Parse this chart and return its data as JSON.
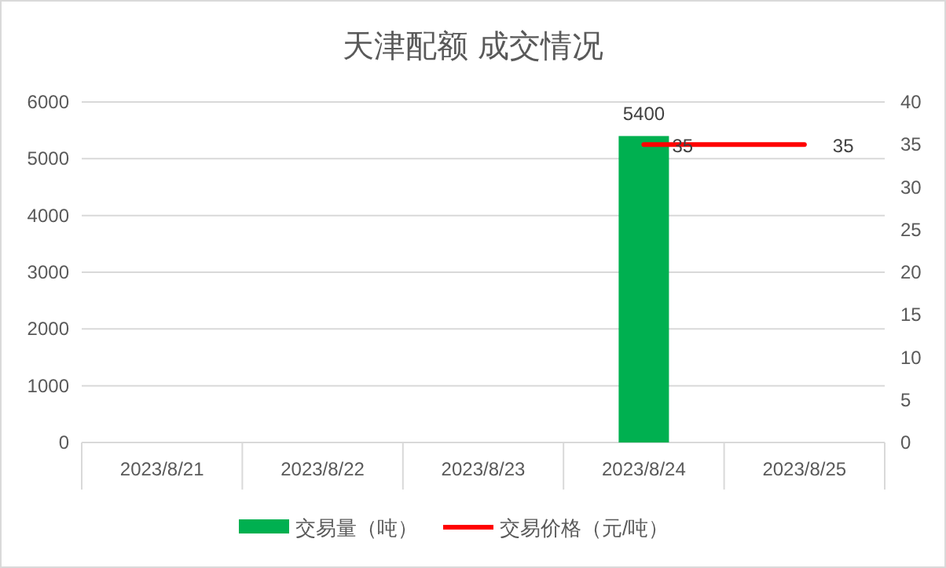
{
  "chart_data": {
    "type": "bar",
    "title": "天津配额 成交情况",
    "categories": [
      "2023/8/21",
      "2023/8/22",
      "2023/8/23",
      "2023/8/24",
      "2023/8/25"
    ],
    "series": [
      {
        "name": "交易量（吨）",
        "color": "#00b050",
        "values": [
          null,
          null,
          null,
          5400,
          null
        ]
      },
      {
        "name": "交易价格（元/吨）",
        "type": "line",
        "axis": "y2",
        "color": "#ff0000",
        "marker": "none",
        "values": [
          null,
          null,
          null,
          35,
          35
        ]
      }
    ],
    "ylim": [
      0,
      6000
    ],
    "yticks": [
      0,
      1000,
      2000,
      3000,
      4000,
      5000,
      6000
    ],
    "y2lim": [
      0,
      40
    ],
    "y2ticks": [
      0,
      5,
      10,
      15,
      20,
      25,
      30,
      35,
      40
    ],
    "grid": "y",
    "legend": "bottom",
    "data_labels": true
  }
}
